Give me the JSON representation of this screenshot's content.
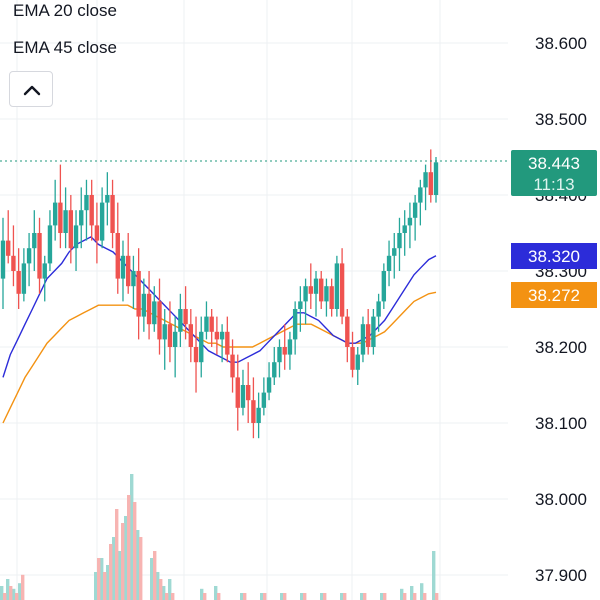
{
  "legend": {
    "ema20_label": "EMA 20 close",
    "ema45_label": "EMA 45 close"
  },
  "toolbar": {
    "collapse_icon": "chevron-up-icon"
  },
  "chart_data": {
    "type": "candlestick",
    "y_axis": {
      "ticks": [
        "38.600",
        "38.500",
        "38.400",
        "38.300",
        "38.200",
        "38.100",
        "38.000",
        "37.900"
      ],
      "range": [
        37.87,
        38.66
      ]
    },
    "current_price": {
      "value": "38.443",
      "countdown": "11:13",
      "color": "#22997d"
    },
    "ema20": {
      "label": "38.320",
      "value": 38.32,
      "color": "#2c2cd9"
    },
    "ema45": {
      "label": "38.272",
      "value": 38.272,
      "color": "#f39212"
    },
    "colors": {
      "up": "#26a69a",
      "down": "#ef5350",
      "vol_up": "#9fd9d3",
      "vol_down": "#f7b4b2",
      "grid": "#eef0f3"
    },
    "candles": [
      [
        38.29,
        38.37,
        38.25,
        38.34
      ],
      [
        38.34,
        38.38,
        38.31,
        38.32
      ],
      [
        38.32,
        38.36,
        38.28,
        38.3
      ],
      [
        38.3,
        38.33,
        38.25,
        38.27
      ],
      [
        38.27,
        38.33,
        38.26,
        38.31
      ],
      [
        38.31,
        38.35,
        38.28,
        38.33
      ],
      [
        38.33,
        38.38,
        38.3,
        38.35
      ],
      [
        38.35,
        38.37,
        38.27,
        38.29
      ],
      [
        38.29,
        38.32,
        38.26,
        38.31
      ],
      [
        38.31,
        38.38,
        38.3,
        38.36
      ],
      [
        38.36,
        38.42,
        38.34,
        38.39
      ],
      [
        38.39,
        38.44,
        38.33,
        38.35
      ],
      [
        38.35,
        38.41,
        38.33,
        38.38
      ],
      [
        38.38,
        38.4,
        38.31,
        38.33
      ],
      [
        38.33,
        38.38,
        38.3,
        38.36
      ],
      [
        38.36,
        38.41,
        38.33,
        38.38
      ],
      [
        38.38,
        38.42,
        38.34,
        38.4
      ],
      [
        38.4,
        38.42,
        38.34,
        38.36
      ],
      [
        38.36,
        38.39,
        38.31,
        38.34
      ],
      [
        38.34,
        38.41,
        38.33,
        38.39
      ],
      [
        38.39,
        38.43,
        38.36,
        38.4
      ],
      [
        38.4,
        38.42,
        38.33,
        38.35
      ],
      [
        38.35,
        38.39,
        38.27,
        38.29
      ],
      [
        38.29,
        38.34,
        38.26,
        38.32
      ],
      [
        38.32,
        38.35,
        38.27,
        38.28
      ],
      [
        38.28,
        38.32,
        38.25,
        38.3
      ],
      [
        38.3,
        38.33,
        38.21,
        38.24
      ],
      [
        38.24,
        38.29,
        38.22,
        38.27
      ],
      [
        38.27,
        38.3,
        38.21,
        38.23
      ],
      [
        38.23,
        38.28,
        38.22,
        38.26
      ],
      [
        38.26,
        38.29,
        38.19,
        38.21
      ],
      [
        38.21,
        38.25,
        38.17,
        38.23
      ],
      [
        38.23,
        38.26,
        38.18,
        38.2
      ],
      [
        38.2,
        38.24,
        38.16,
        38.22
      ],
      [
        38.22,
        38.27,
        38.2,
        38.25
      ],
      [
        38.25,
        38.28,
        38.21,
        38.23
      ],
      [
        38.23,
        38.25,
        38.18,
        38.2
      ],
      [
        38.2,
        38.24,
        38.14,
        38.18
      ],
      [
        38.18,
        38.24,
        38.16,
        38.22
      ],
      [
        38.22,
        38.26,
        38.21,
        38.24
      ],
      [
        38.24,
        38.25,
        38.2,
        38.22
      ],
      [
        38.22,
        38.24,
        38.19,
        38.21
      ],
      [
        38.21,
        38.23,
        38.18,
        38.22
      ],
      [
        38.22,
        38.24,
        38.18,
        38.19
      ],
      [
        38.19,
        38.21,
        38.14,
        38.16
      ],
      [
        38.16,
        38.19,
        38.09,
        38.12
      ],
      [
        38.12,
        38.17,
        38.11,
        38.15
      ],
      [
        38.15,
        38.18,
        38.1,
        38.13
      ],
      [
        38.13,
        38.16,
        38.08,
        38.1
      ],
      [
        38.1,
        38.14,
        38.08,
        38.12
      ],
      [
        38.12,
        38.16,
        38.11,
        38.14
      ],
      [
        38.14,
        38.18,
        38.13,
        38.16
      ],
      [
        38.16,
        38.2,
        38.15,
        38.18
      ],
      [
        38.18,
        38.21,
        38.16,
        38.2
      ],
      [
        38.2,
        38.23,
        38.17,
        38.19
      ],
      [
        38.19,
        38.22,
        38.17,
        38.21
      ],
      [
        38.21,
        38.26,
        38.19,
        38.25
      ],
      [
        38.25,
        38.28,
        38.22,
        38.26
      ],
      [
        38.26,
        38.29,
        38.23,
        38.28
      ],
      [
        38.28,
        38.31,
        38.25,
        38.27
      ],
      [
        38.27,
        38.3,
        38.24,
        38.29
      ],
      [
        38.29,
        38.3,
        38.25,
        38.26
      ],
      [
        38.26,
        38.29,
        38.24,
        38.28
      ],
      [
        38.28,
        38.29,
        38.24,
        38.25
      ],
      [
        38.25,
        38.32,
        38.24,
        38.31
      ],
      [
        38.31,
        38.33,
        38.23,
        38.24
      ],
      [
        38.24,
        38.25,
        38.18,
        38.2
      ],
      [
        38.2,
        38.22,
        38.16,
        38.17
      ],
      [
        38.17,
        38.2,
        38.15,
        38.19
      ],
      [
        38.19,
        38.24,
        38.18,
        38.23
      ],
      [
        38.23,
        38.25,
        38.19,
        38.2
      ],
      [
        38.2,
        38.25,
        38.19,
        38.24
      ],
      [
        38.24,
        38.27,
        38.22,
        38.26
      ],
      [
        38.26,
        38.31,
        38.25,
        38.3
      ],
      [
        38.3,
        38.34,
        38.28,
        38.32
      ],
      [
        38.32,
        38.35,
        38.29,
        38.33
      ],
      [
        38.33,
        38.37,
        38.3,
        38.35
      ],
      [
        38.35,
        38.38,
        38.32,
        38.36
      ],
      [
        38.36,
        38.39,
        38.33,
        38.37
      ],
      [
        38.37,
        38.4,
        38.34,
        38.39
      ],
      [
        38.39,
        38.42,
        38.36,
        38.41
      ],
      [
        38.41,
        38.44,
        38.38,
        38.43
      ],
      [
        38.43,
        38.46,
        38.39,
        38.4
      ],
      [
        38.4,
        38.45,
        38.39,
        38.443
      ]
    ],
    "ema20_series": [
      38.16,
      38.19,
      38.21,
      38.23,
      38.25,
      38.27,
      38.29,
      38.3,
      38.31,
      38.325,
      38.335,
      38.34,
      38.345,
      38.335,
      38.33,
      38.325,
      38.315,
      38.305,
      38.295,
      38.285,
      38.275,
      38.265,
      38.255,
      38.245,
      38.235,
      38.225,
      38.215,
      38.205,
      38.195,
      38.19,
      38.185,
      38.18,
      38.18,
      38.185,
      38.19,
      38.195,
      38.205,
      38.215,
      38.225,
      38.235,
      38.245,
      38.245,
      38.24,
      38.235,
      38.225,
      38.215,
      38.21,
      38.205,
      38.205,
      38.21,
      38.215,
      38.225,
      38.235,
      38.25,
      38.265,
      38.28,
      38.295,
      38.305,
      38.315,
      38.32
    ],
    "ema45_series": [
      38.1,
      38.12,
      38.14,
      38.16,
      38.175,
      38.19,
      38.205,
      38.215,
      38.225,
      38.235,
      38.24,
      38.245,
      38.25,
      38.255,
      38.255,
      38.255,
      38.255,
      38.255,
      38.25,
      38.25,
      38.245,
      38.24,
      38.235,
      38.23,
      38.225,
      38.22,
      38.215,
      38.21,
      38.205,
      38.205,
      38.2,
      38.2,
      38.2,
      38.2,
      38.2,
      38.205,
      38.21,
      38.215,
      38.22,
      38.225,
      38.23,
      38.23,
      38.23,
      38.225,
      38.22,
      38.215,
      38.21,
      38.205,
      38.205,
      38.205,
      38.21,
      38.215,
      38.22,
      38.23,
      38.24,
      38.25,
      38.26,
      38.265,
      38.27,
      38.272
    ],
    "volumes_up": [
      0.1,
      0.15,
      0.08,
      0.12,
      0.2,
      0.3,
      0.25,
      0.45,
      0.35,
      0.6,
      0.9,
      0.5,
      0.3,
      0.2,
      0.1,
      0.15,
      0.08,
      0.1,
      0.05,
      0.05,
      0.05,
      0.05,
      0.05,
      0.05,
      0.05,
      0.05,
      0.08,
      0.1,
      0.12,
      0.35
    ],
    "volumes_down": [
      0.05,
      0.1,
      0.05,
      0.18,
      0.3,
      0.2,
      0.4,
      0.65,
      0.55,
      0.75,
      0.7,
      0.45,
      0.35,
      0.15,
      0.05,
      0.05,
      0.05,
      0.05,
      0.05,
      0.05,
      0.05,
      0.05,
      0.05,
      0.05,
      0.05,
      0.05,
      0.05,
      0.05,
      0.05,
      0.05
    ]
  }
}
